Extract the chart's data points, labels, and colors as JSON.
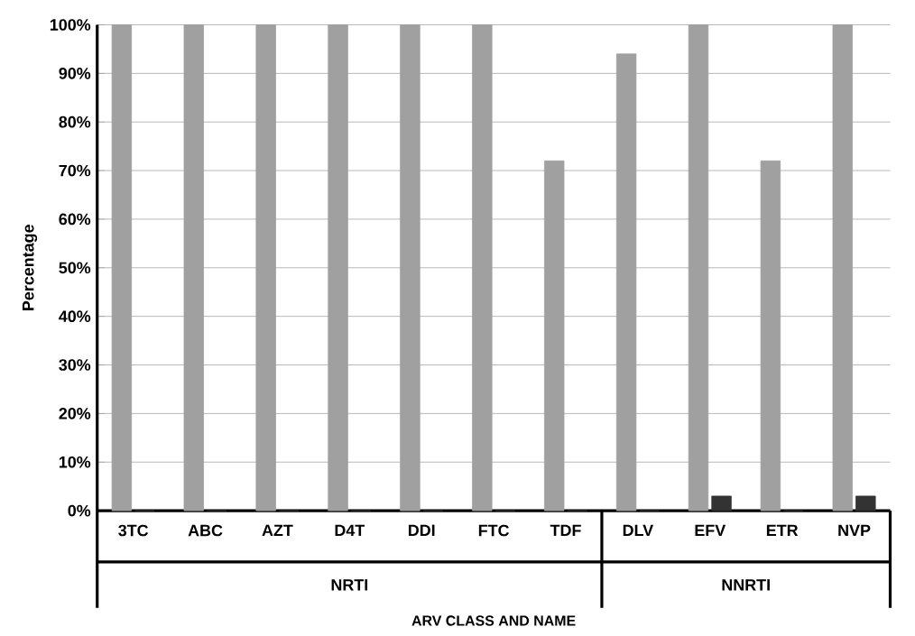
{
  "chart_data": {
    "type": "bar",
    "ylabel": "Percentage",
    "categories": [
      "3TC",
      "ABC",
      "AZT",
      "D4T",
      "DDI",
      "FTC",
      "TDF",
      "DLV",
      "EFV",
      "ETR",
      "NVP"
    ],
    "series": [
      {
        "color": "#a0a0a0",
        "values": [
          100,
          100,
          100,
          100,
          100,
          100,
          72,
          94,
          100,
          72,
          100
        ]
      },
      {
        "color": "#333333",
        "values": [
          0,
          0,
          0,
          0,
          0,
          0,
          0,
          0,
          3,
          0,
          3
        ]
      }
    ],
    "ylim": [
      0,
      100
    ],
    "yticks": [
      {
        "value": 0,
        "label": "0%"
      },
      {
        "value": 10,
        "label": "10%"
      },
      {
        "value": 20,
        "label": "20%"
      },
      {
        "value": 30,
        "label": "30%"
      },
      {
        "value": 40,
        "label": "40%"
      },
      {
        "value": 50,
        "label": "50%"
      },
      {
        "value": 60,
        "label": "60%"
      },
      {
        "value": 70,
        "label": "70%"
      },
      {
        "value": 80,
        "label": "80%"
      },
      {
        "value": 90,
        "label": "90%"
      },
      {
        "value": 100,
        "label": "100%"
      }
    ],
    "grid": "y",
    "annotations": [
      "NRTI",
      "NNRTI",
      "ARV  CLASS AND NAME"
    ]
  }
}
